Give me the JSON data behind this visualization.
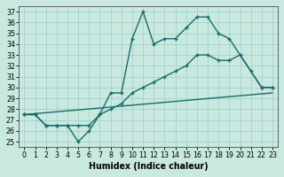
{
  "xlabel": "Humidex (Indice chaleur)",
  "bg_color": "#c8e8e0",
  "line_color": "#1a6b6b",
  "xlim": [
    -0.5,
    23.5
  ],
  "ylim": [
    24.5,
    37.5
  ],
  "xticks": [
    0,
    1,
    2,
    3,
    4,
    5,
    6,
    7,
    8,
    9,
    10,
    11,
    12,
    13,
    14,
    15,
    16,
    17,
    18,
    19,
    20,
    21,
    22,
    23
  ],
  "yticks": [
    25,
    26,
    27,
    28,
    29,
    30,
    31,
    32,
    33,
    34,
    35,
    36,
    37
  ],
  "line1_x": [
    0,
    1,
    2,
    3,
    4,
    5,
    6,
    7,
    8,
    9,
    10,
    11,
    12,
    13,
    14,
    15,
    16,
    17,
    18,
    19,
    22,
    23
  ],
  "line1_y": [
    27.5,
    27.5,
    26.5,
    26.5,
    26.5,
    25.0,
    26.0,
    27.5,
    29.5,
    29.5,
    34.5,
    37.0,
    34.0,
    34.5,
    34.5,
    35.5,
    36.5,
    36.5,
    35.0,
    34.5,
    30.0,
    30.0
  ],
  "line2_x": [
    0,
    1,
    2,
    3,
    4,
    5,
    6,
    7,
    8,
    9,
    10,
    11,
    12,
    13,
    14,
    15,
    16,
    17,
    18,
    19,
    20,
    21,
    22,
    23
  ],
  "line2_y": [
    27.5,
    27.5,
    26.5,
    26.5,
    26.5,
    26.5,
    26.5,
    27.5,
    28.0,
    28.5,
    29.5,
    30.0,
    30.5,
    31.0,
    31.5,
    32.0,
    33.0,
    33.0,
    32.5,
    32.5,
    33.0,
    31.5,
    30.0,
    30.0
  ],
  "line3_x": [
    0,
    23
  ],
  "line3_y": [
    27.5,
    29.5
  ]
}
